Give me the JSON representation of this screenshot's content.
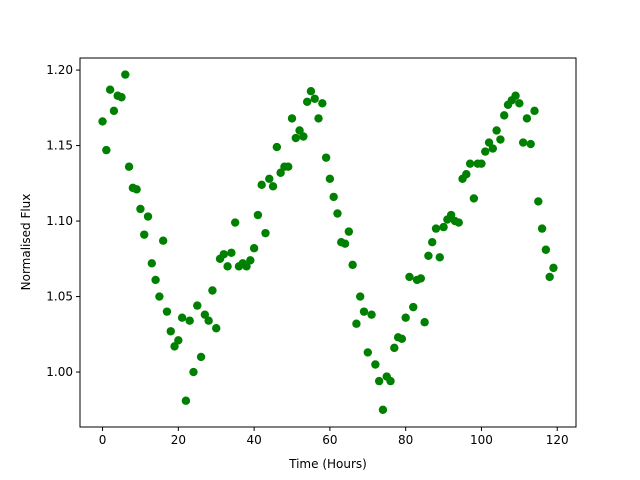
{
  "chart_data": {
    "type": "scatter",
    "xlabel": "Time (Hours)",
    "ylabel": "Normalised Flux",
    "x": [
      0,
      1,
      2,
      3,
      4,
      5,
      6,
      7,
      8,
      9,
      10,
      11,
      12,
      13,
      14,
      15,
      16,
      17,
      18,
      19,
      20,
      21,
      22,
      23,
      24,
      25,
      26,
      27,
      28,
      29,
      30,
      31,
      32,
      33,
      34,
      35,
      36,
      37,
      38,
      39,
      40,
      41,
      42,
      43,
      44,
      45,
      46,
      47,
      48,
      49,
      50,
      51,
      52,
      53,
      54,
      55,
      56,
      57,
      58,
      59,
      60,
      61,
      62,
      63,
      64,
      65,
      66,
      67,
      68,
      69,
      70,
      71,
      72,
      73,
      74,
      75,
      76,
      77,
      78,
      79,
      80,
      81,
      82,
      83,
      84,
      85,
      86,
      87,
      88,
      89,
      90,
      91,
      92,
      93,
      94,
      95,
      96,
      97,
      98,
      99,
      100,
      101,
      102,
      103,
      104,
      105,
      106,
      107,
      108,
      109,
      110,
      111,
      112,
      113,
      114,
      115,
      116,
      117,
      118,
      119
    ],
    "series": [
      {
        "color": "#008000",
        "values": [
          1.166,
          1.147,
          1.187,
          1.173,
          1.183,
          1.182,
          1.197,
          1.136,
          1.122,
          1.121,
          1.108,
          1.091,
          1.103,
          1.072,
          1.061,
          1.05,
          1.087,
          1.04,
          1.027,
          1.017,
          1.021,
          1.036,
          0.981,
          1.034,
          1.0,
          1.044,
          1.01,
          1.038,
          1.034,
          1.054,
          1.029,
          1.075,
          1.078,
          1.07,
          1.079,
          1.099,
          1.07,
          1.072,
          1.07,
          1.074,
          1.082,
          1.104,
          1.124,
          1.092,
          1.128,
          1.123,
          1.149,
          1.132,
          1.136,
          1.136,
          1.168,
          1.155,
          1.16,
          1.156,
          1.179,
          1.186,
          1.181,
          1.168,
          1.178,
          1.142,
          1.128,
          1.116,
          1.105,
          1.086,
          1.085,
          1.093,
          1.071,
          1.032,
          1.05,
          1.04,
          1.013,
          1.038,
          1.005,
          0.994,
          0.975,
          0.997,
          0.994,
          1.016,
          1.023,
          1.022,
          1.036,
          1.063,
          1.043,
          1.061,
          1.062,
          1.033,
          1.077,
          1.086,
          1.095,
          1.076,
          1.096,
          1.101,
          1.104,
          1.1,
          1.099,
          1.128,
          1.131,
          1.138,
          1.115,
          1.138,
          1.138,
          1.146,
          1.152,
          1.148,
          1.16,
          1.154,
          1.17,
          1.177,
          1.18,
          1.183,
          1.178,
          1.152,
          1.168,
          1.151,
          1.173,
          1.113,
          1.095,
          1.081,
          1.063,
          1.069
        ]
      }
    ],
    "xlim": [
      -5.95,
      124.95
    ],
    "ylim": [
      0.9636,
      1.208
    ],
    "xticks": [
      0,
      20,
      40,
      60,
      80,
      100,
      120
    ],
    "yticks": [
      {
        "value": 1.0,
        "label": "1.00"
      },
      1.05,
      {
        "value": 1.1,
        "label": "1.10"
      },
      1.15,
      {
        "value": 1.2,
        "label": "1.20"
      }
    ]
  }
}
